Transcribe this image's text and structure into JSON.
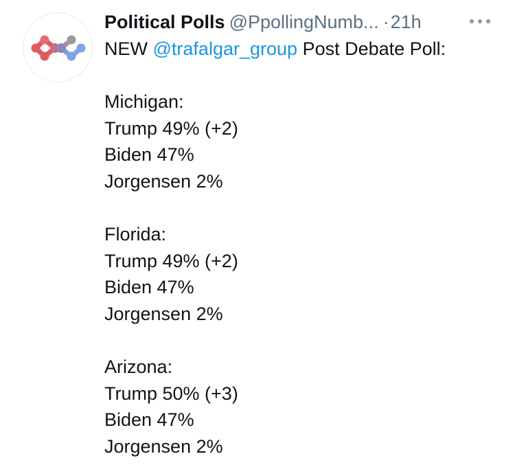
{
  "tweet": {
    "display_name": "Political Polls",
    "handle": "@PpollingNumb...",
    "separator": "·",
    "time": "21h",
    "more_label": "···",
    "intro_prefix": "NEW",
    "mention": "@trafalgar_group",
    "intro_suffix": "Post Debate Poll:",
    "states": [
      {
        "name": "Michigan:",
        "lines": [
          "Trump 49% (+2)",
          "Biden 47%",
          "Jorgensen 2%"
        ]
      },
      {
        "name": "Florida:",
        "lines": [
          "Trump 49% (+2)",
          "Biden 47%",
          "Jorgensen 2%"
        ]
      },
      {
        "name": "Arizona:",
        "lines": [
          "Trump 50% (+3)",
          "Biden 47%",
          "Jorgensen 2%"
        ]
      }
    ]
  },
  "colors": {
    "text": "#0f1419",
    "secondary": "#5b7083",
    "link": "#1b95e0",
    "avatar_red": "#e05a5f",
    "avatar_blue": "#7fa3e3",
    "avatar_gray": "#9a9aa0"
  }
}
